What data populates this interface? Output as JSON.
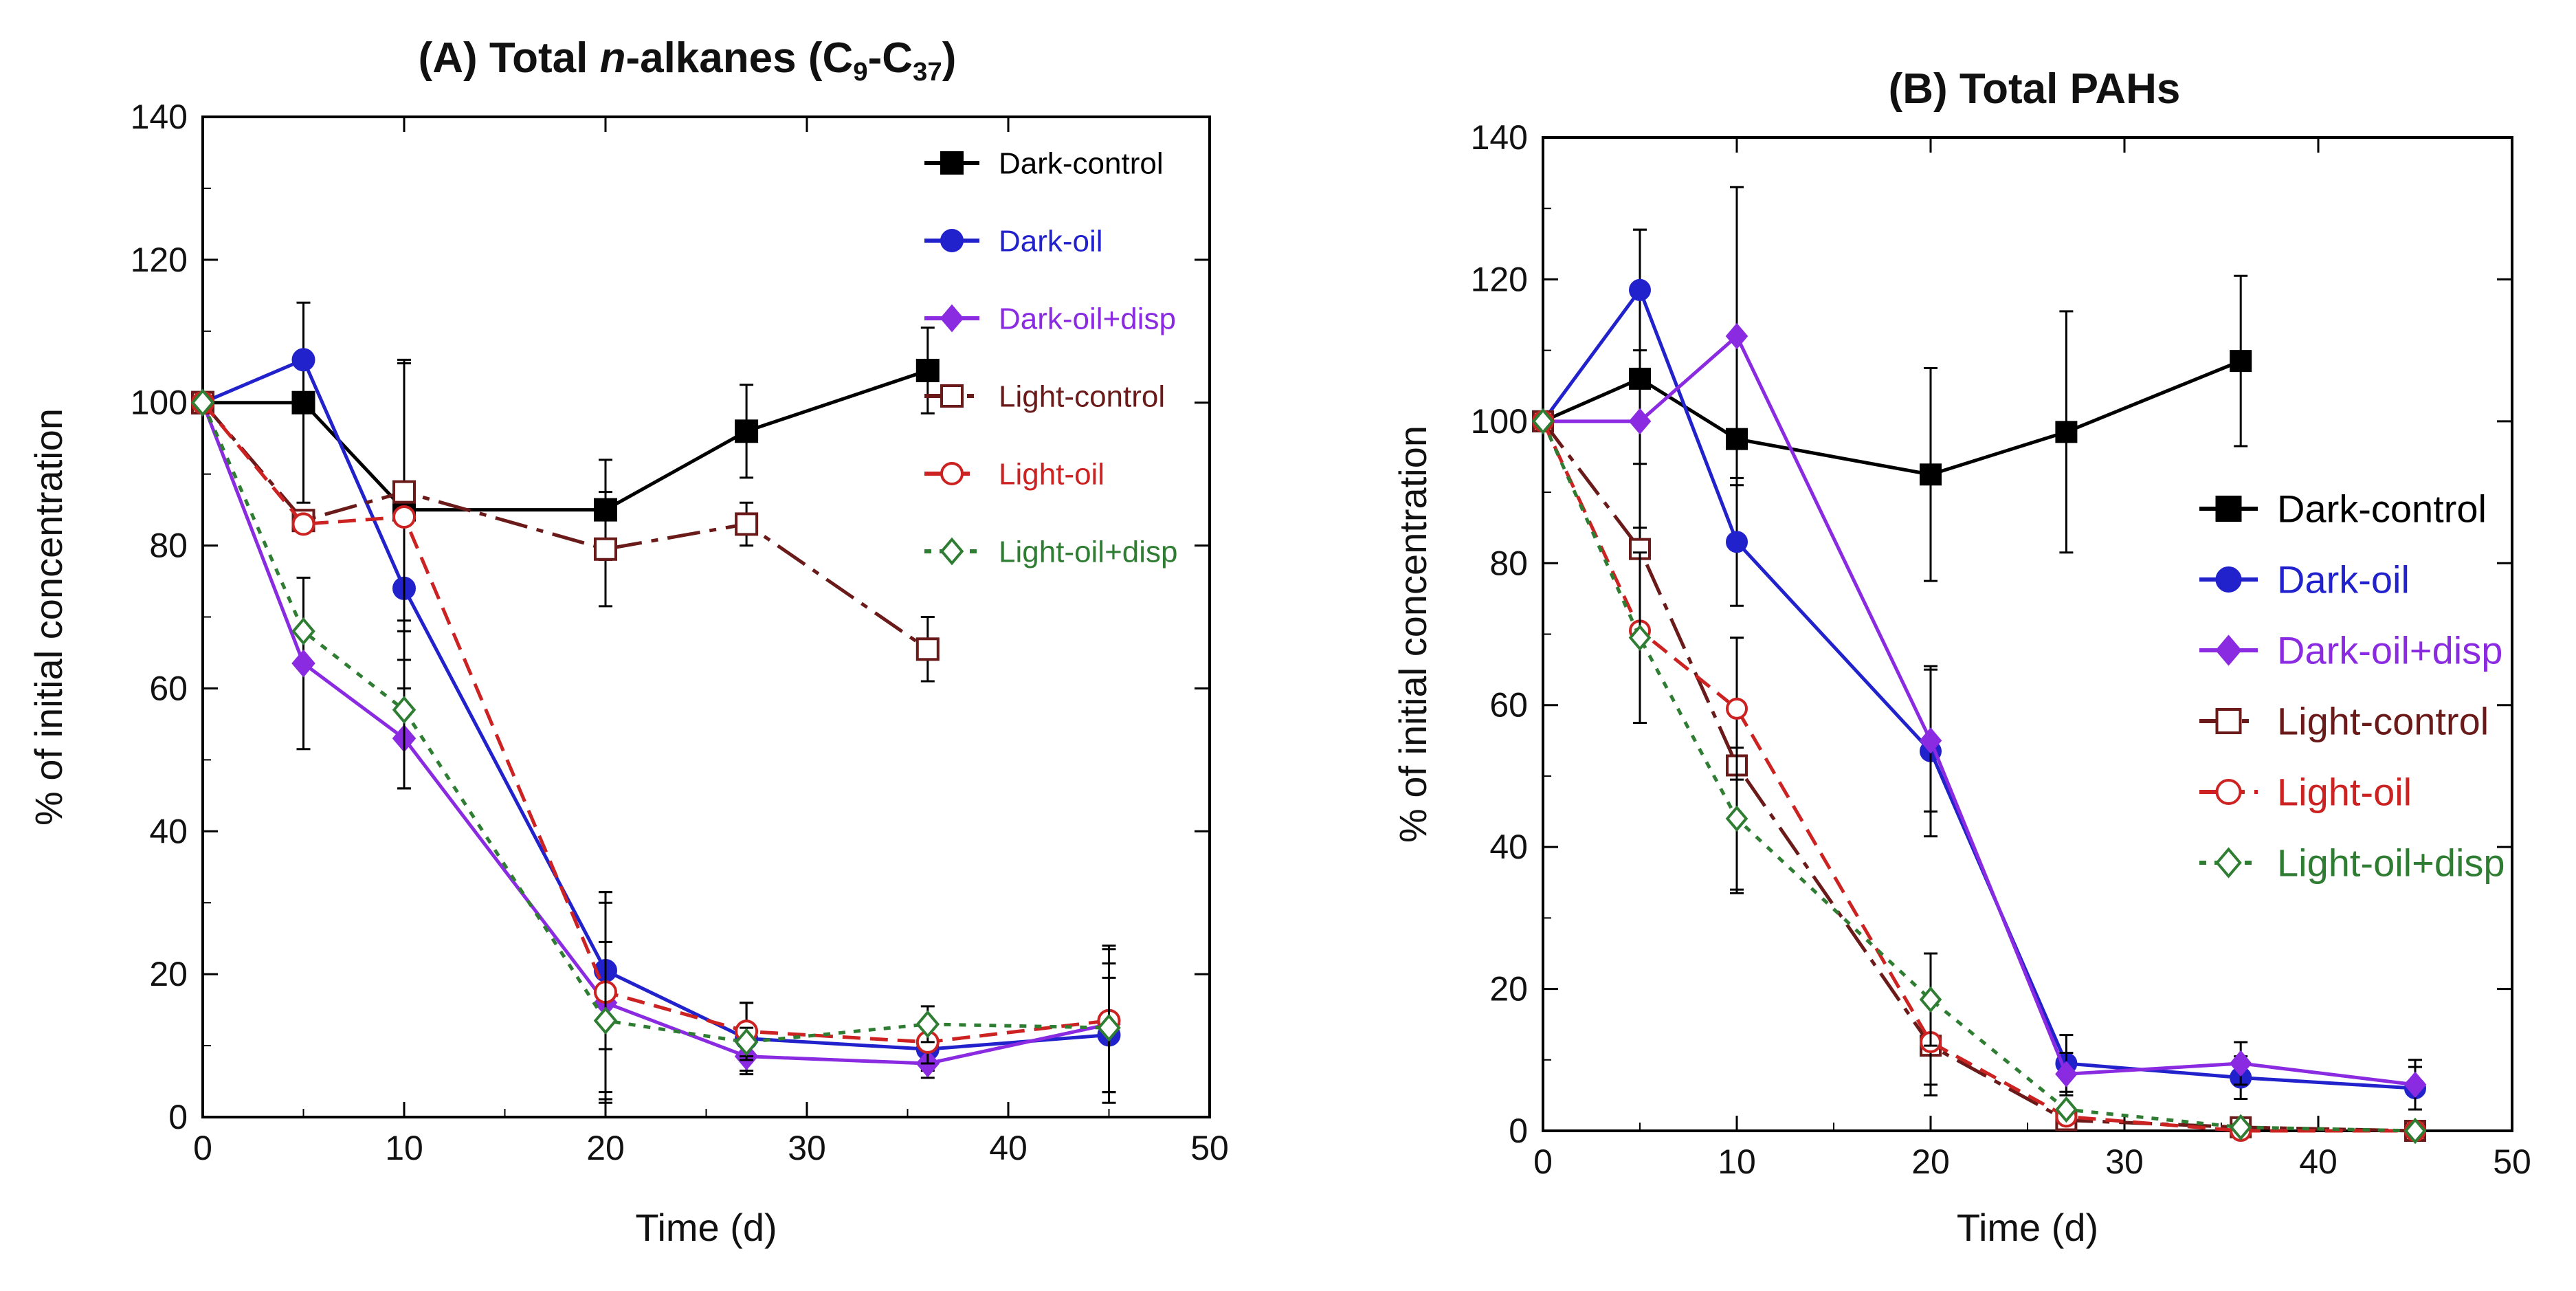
{
  "chart_data": [
    {
      "type": "line",
      "title_parts": [
        "(A) Total ",
        "n",
        "-alkanes (C",
        "9",
        "-C",
        "37",
        ")"
      ],
      "xlabel": "Time (d)",
      "ylabel": "% of initial concentration",
      "xlim": [
        0,
        50
      ],
      "ylim": [
        0,
        140
      ],
      "xticks": [
        "0",
        "10",
        "20",
        "30",
        "40",
        "50"
      ],
      "yticks": [
        "0",
        "20",
        "40",
        "60",
        "80",
        "100",
        "120",
        "140"
      ],
      "legend_position": "top-right",
      "series": [
        {
          "name": "Dark-control",
          "color": "#000000",
          "marker": "filled-square",
          "dash": "solid",
          "x": [
            0,
            5,
            10,
            20,
            27,
            36
          ],
          "y": [
            100,
            100,
            85,
            85,
            96,
            104.5
          ],
          "err": [
            0,
            14,
            21,
            7,
            6.5,
            6
          ]
        },
        {
          "name": "Dark-oil",
          "color": "#2222cc",
          "marker": "filled-circle",
          "dash": "solid",
          "x": [
            0,
            5,
            10,
            20,
            27,
            36,
            45
          ],
          "y": [
            100,
            106,
            74,
            20.5,
            11,
            9.5,
            11.5
          ],
          "err": [
            0,
            0,
            0,
            11,
            5,
            3,
            8
          ]
        },
        {
          "name": "Dark-oil+disp",
          "color": "#8a2be2",
          "marker": "filled-diamond",
          "dash": "solid",
          "x": [
            0,
            5,
            10,
            20,
            27,
            36,
            45
          ],
          "y": [
            100,
            63.5,
            53,
            16,
            8.5,
            7.5,
            13
          ],
          "err": [
            0,
            12,
            7,
            14,
            2,
            2,
            11
          ]
        },
        {
          "name": "Light-control",
          "color": "#6b1a1a",
          "marker": "open-square",
          "dash": "longdash",
          "x": [
            0,
            5,
            10,
            20,
            27,
            36
          ],
          "y": [
            100,
            83.5,
            87.5,
            79.5,
            83,
            65.5
          ],
          "err": [
            0,
            0,
            18,
            8,
            3,
            4.5
          ]
        },
        {
          "name": "Light-oil",
          "color": "#cc2222",
          "marker": "open-circle",
          "dash": "dash",
          "x": [
            0,
            5,
            10,
            20,
            27,
            36,
            45
          ],
          "y": [
            100,
            83,
            84,
            17.5,
            12,
            10.5,
            13.5
          ],
          "err": [
            0,
            0,
            0,
            14,
            4,
            3,
            10
          ]
        },
        {
          "name": "Light-oil+disp",
          "color": "#2e7d32",
          "marker": "open-diamond",
          "dash": "dot",
          "x": [
            0,
            5,
            10,
            20,
            27,
            36,
            45
          ],
          "y": [
            100,
            68,
            57,
            13.5,
            10.5,
            13,
            12.5
          ],
          "err": [
            0,
            0,
            11,
            11,
            2,
            2.5,
            9
          ]
        }
      ]
    },
    {
      "type": "line",
      "title_parts": [
        "(B) Total PAHs"
      ],
      "xlabel": "Time (d)",
      "ylabel": "% of initial concentration",
      "xlim": [
        0,
        50
      ],
      "ylim": [
        0,
        140
      ],
      "xticks": [
        "0",
        "10",
        "20",
        "30",
        "40",
        "50"
      ],
      "yticks": [
        "0",
        "20",
        "40",
        "60",
        "80",
        "100",
        "120",
        "140"
      ],
      "legend_position": "center-right",
      "series": [
        {
          "name": "Dark-control",
          "color": "#000000",
          "marker": "filled-square",
          "dash": "solid",
          "x": [
            0,
            5,
            10,
            20,
            27,
            36
          ],
          "y": [
            100,
            106,
            97.5,
            92.5,
            98.5,
            108.5
          ],
          "err": [
            0,
            21,
            0,
            15,
            17,
            12
          ]
        },
        {
          "name": "Dark-oil",
          "color": "#2222cc",
          "marker": "filled-circle",
          "dash": "solid",
          "x": [
            0,
            5,
            10,
            20,
            27,
            36,
            45
          ],
          "y": [
            100,
            118.5,
            83,
            53.5,
            9.5,
            7.5,
            6
          ],
          "err": [
            0,
            8.5,
            9,
            12,
            4,
            3,
            3
          ]
        },
        {
          "name": "Dark-oil+disp",
          "color": "#8a2be2",
          "marker": "filled-diamond",
          "dash": "solid",
          "x": [
            0,
            5,
            10,
            20,
            27,
            36,
            45
          ],
          "y": [
            100,
            100,
            112,
            55,
            8,
            9.5,
            6.5
          ],
          "err": [
            0,
            0,
            21,
            10,
            3,
            3,
            3.5
          ]
        },
        {
          "name": "Light-control",
          "color": "#6b1a1a",
          "marker": "open-square",
          "dash": "longdash",
          "x": [
            0,
            5,
            10,
            20,
            27,
            36,
            45
          ],
          "y": [
            100,
            82,
            51.5,
            12,
            1.5,
            0.5,
            0
          ],
          "err": [
            0,
            12,
            18,
            7,
            0,
            0,
            0
          ]
        },
        {
          "name": "Light-oil",
          "color": "#cc2222",
          "marker": "open-circle",
          "dash": "dash",
          "x": [
            0,
            5,
            10,
            20,
            27,
            36,
            45
          ],
          "y": [
            100,
            70.5,
            59.5,
            12.5,
            2,
            0,
            0
          ],
          "err": [
            0,
            0,
            10,
            6,
            0,
            0,
            0
          ]
        },
        {
          "name": "Light-oil+disp",
          "color": "#2e7d32",
          "marker": "open-diamond",
          "dash": "dot",
          "x": [
            0,
            5,
            10,
            20,
            27,
            36,
            45
          ],
          "y": [
            100,
            69.5,
            44,
            18.5,
            3,
            0.5,
            0
          ],
          "err": [
            0,
            12,
            10,
            6.5,
            0,
            0,
            0
          ]
        }
      ]
    }
  ]
}
